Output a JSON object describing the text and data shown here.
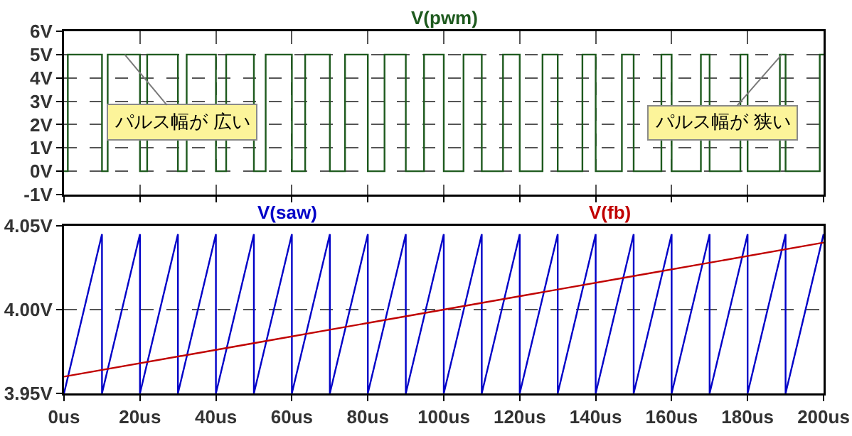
{
  "chart_data": [
    {
      "type": "step",
      "xlim": [
        0,
        200
      ],
      "xticks": [
        {
          "value": 0,
          "label": null
        },
        {
          "value": 20,
          "label": null
        },
        {
          "value": 40,
          "label": null
        },
        {
          "value": 60,
          "label": null
        },
        {
          "value": 80,
          "label": null
        },
        {
          "value": 100,
          "label": null
        },
        {
          "value": 120,
          "label": null
        },
        {
          "value": 140,
          "label": null
        },
        {
          "value": 160,
          "label": null
        },
        {
          "value": 180,
          "label": null
        },
        {
          "value": 200,
          "label": null
        }
      ],
      "ylim": [
        -1,
        6
      ],
      "yticks": [
        {
          "value": -1,
          "label": "-1V"
        },
        {
          "value": 0,
          "label": "0V"
        },
        {
          "value": 1,
          "label": "1V"
        },
        {
          "value": 2,
          "label": "2V"
        },
        {
          "value": 3,
          "label": "3V"
        },
        {
          "value": 4,
          "label": "4V"
        },
        {
          "value": 5,
          "label": "5V"
        },
        {
          "value": 6,
          "label": "6V"
        }
      ],
      "tick_labels": "y",
      "grid": true,
      "legend": "top",
      "series": [
        {
          "name": "V(pwm)",
          "color": "#1e5a1e",
          "x": [
            0,
            1.0,
            10,
            11.5,
            20,
            21.9,
            30,
            32.3,
            40,
            42.7,
            50,
            53.1,
            60,
            63.5,
            70,
            74.0,
            80,
            84.4,
            90,
            94.8,
            100,
            105.2,
            110,
            115.6,
            120,
            126.0,
            130,
            136.5,
            140,
            146.9,
            150,
            157.3,
            160,
            167.7,
            170,
            178.1,
            180,
            188.5,
            190,
            199.0,
            200
          ],
          "values": [
            0,
            5,
            0,
            5,
            0,
            5,
            0,
            5,
            0,
            5,
            0,
            5,
            0,
            5,
            0,
            5,
            0,
            5,
            0,
            5,
            0,
            5,
            0,
            5,
            0,
            5,
            0,
            5,
            0,
            5,
            0,
            5,
            0,
            5,
            0,
            5,
            0,
            5,
            0,
            5,
            5
          ]
        }
      ],
      "annotations": [
        {
          "text": "パルス幅が 広い",
          "x": 16,
          "y": 5
        },
        {
          "text": "パルス幅が 狭い",
          "x": 189,
          "y": 5
        }
      ]
    },
    {
      "type": "line",
      "xlim": [
        0,
        200
      ],
      "xticks": [
        {
          "value": 0,
          "label": "0us"
        },
        {
          "value": 20,
          "label": "20us"
        },
        {
          "value": 40,
          "label": "40us"
        },
        {
          "value": 60,
          "label": "60us"
        },
        {
          "value": 80,
          "label": "80us"
        },
        {
          "value": 100,
          "label": "100us"
        },
        {
          "value": 120,
          "label": "120us"
        },
        {
          "value": 140,
          "label": "140us"
        },
        {
          "value": 160,
          "label": "160us"
        },
        {
          "value": 180,
          "label": "180us"
        },
        {
          "value": 200,
          "label": "200us"
        }
      ],
      "ylim": [
        3.95,
        4.05
      ],
      "yticks": [
        {
          "value": 3.95,
          "label": "3.95V"
        },
        {
          "value": 4.0,
          "label": "4.00V"
        },
        {
          "value": 4.05,
          "label": "4.05V"
        }
      ],
      "grid": "y",
      "legend": "top",
      "series": [
        {
          "name": "V(saw)",
          "color": "#0000c8",
          "x": [
            0,
            10,
            10,
            20,
            20,
            30,
            30,
            40,
            40,
            50,
            50,
            60,
            60,
            70,
            70,
            80,
            80,
            90,
            90,
            100,
            100,
            110,
            110,
            120,
            120,
            130,
            130,
            140,
            140,
            150,
            150,
            160,
            160,
            170,
            170,
            180,
            180,
            190,
            190,
            200
          ],
          "values": [
            3.95,
            4.045,
            3.95,
            4.045,
            3.95,
            4.045,
            3.95,
            4.045,
            3.95,
            4.045,
            3.95,
            4.045,
            3.95,
            4.045,
            3.95,
            4.045,
            3.95,
            4.045,
            3.95,
            4.045,
            3.95,
            4.045,
            3.95,
            4.045,
            3.95,
            4.045,
            3.95,
            4.045,
            3.95,
            4.045,
            3.95,
            4.045,
            3.95,
            4.045,
            3.95,
            4.045,
            3.95,
            4.045,
            3.95,
            4.045
          ]
        },
        {
          "name": "V(fb)",
          "color": "#c00000",
          "x": [
            0,
            50,
            100,
            150,
            200
          ],
          "values": [
            3.96,
            3.98,
            4.0,
            4.02,
            4.04
          ]
        }
      ]
    }
  ]
}
